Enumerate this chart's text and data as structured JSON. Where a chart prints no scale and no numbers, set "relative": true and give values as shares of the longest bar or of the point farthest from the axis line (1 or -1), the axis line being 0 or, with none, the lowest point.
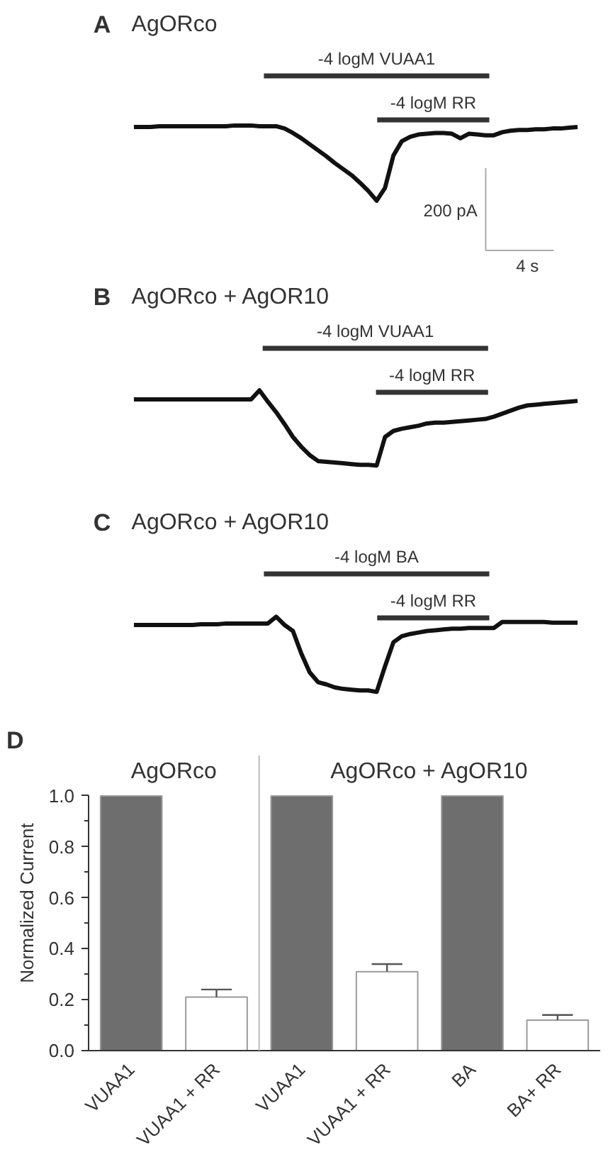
{
  "chart_data": [
    {
      "type": "line",
      "title": "A",
      "subtitle": "AgORco",
      "relative": true,
      "categories": [
        null,
        null,
        null,
        null,
        null,
        null,
        null,
        null,
        null,
        null,
        null,
        null,
        null,
        null,
        null,
        null,
        null,
        null,
        null,
        null,
        null,
        null,
        null,
        null,
        null,
        null,
        null,
        null,
        null,
        null,
        null,
        null,
        null,
        null,
        null,
        null,
        null,
        null,
        null,
        null,
        null,
        null,
        null,
        null,
        null,
        null,
        null,
        null,
        null,
        null,
        null,
        null,
        null,
        null
      ],
      "series": [
        {
          "color": "#111111",
          "values": [
            0.98,
            0.98,
            0.98,
            0.99,
            0.99,
            0.99,
            0.99,
            0.99,
            0.99,
            0.99,
            0.99,
            0.99,
            1.0,
            1.0,
            1.0,
            0.99,
            0.99,
            0.99,
            0.96,
            0.9,
            0.83,
            0.75,
            0.67,
            0.59,
            0.5,
            0.42,
            0.34,
            0.24,
            0.13,
            0.0,
            0.17,
            0.6,
            0.79,
            0.85,
            0.88,
            0.89,
            0.9,
            0.9,
            0.89,
            0.83,
            0.89,
            0.88,
            0.87,
            0.87,
            0.91,
            0.93,
            0.94,
            0.94,
            0.95,
            0.95,
            0.96,
            0.96,
            0.97,
            0.98
          ]
        }
      ],
      "annotations": [
        "-4 logM VUAA1",
        "-4 logM RR",
        "200 pA",
        "4 s"
      ]
    },
    {
      "type": "line",
      "title": "B",
      "subtitle": "AgORco + AgOR10",
      "relative": true,
      "categories": [
        null,
        null,
        null,
        null,
        null,
        null,
        null,
        null,
        null,
        null,
        null,
        null,
        null,
        null,
        null,
        null,
        null,
        null,
        null,
        null,
        null,
        null,
        null,
        null,
        null,
        null,
        null,
        null,
        null,
        null,
        null,
        null,
        null,
        null,
        null,
        null,
        null,
        null,
        null,
        null,
        null,
        null,
        null,
        null,
        null,
        null,
        null,
        null,
        null,
        null,
        null,
        null,
        null,
        null
      ],
      "series": [
        {
          "color": "#111111",
          "values": [
            0.88,
            0.88,
            0.88,
            0.88,
            0.88,
            0.88,
            0.88,
            0.88,
            0.88,
            0.88,
            0.88,
            0.88,
            0.88,
            0.88,
            0.88,
            1.0,
            0.85,
            0.71,
            0.55,
            0.38,
            0.25,
            0.14,
            0.06,
            0.05,
            0.04,
            0.03,
            0.02,
            0.01,
            0.01,
            0.0,
            0.38,
            0.46,
            0.49,
            0.51,
            0.53,
            0.56,
            0.57,
            0.57,
            0.58,
            0.59,
            0.6,
            0.61,
            0.62,
            0.65,
            0.69,
            0.73,
            0.77,
            0.8,
            0.81,
            0.82,
            0.83,
            0.84,
            0.85,
            0.86
          ]
        }
      ],
      "annotations": [
        "-4 logM VUAA1",
        "-4 logM RR"
      ]
    },
    {
      "type": "line",
      "title": "C",
      "subtitle": "AgORco + AgOR10",
      "relative": true,
      "categories": [
        null,
        null,
        null,
        null,
        null,
        null,
        null,
        null,
        null,
        null,
        null,
        null,
        null,
        null,
        null,
        null,
        null,
        null,
        null,
        null,
        null,
        null,
        null,
        null,
        null,
        null,
        null,
        null,
        null,
        null,
        null,
        null,
        null,
        null,
        null,
        null,
        null,
        null,
        null,
        null,
        null,
        null,
        null,
        null,
        null,
        null,
        null,
        null,
        null,
        null,
        null,
        null,
        null,
        null
      ],
      "series": [
        {
          "color": "#111111",
          "values": [
            0.89,
            0.89,
            0.89,
            0.89,
            0.89,
            0.89,
            0.89,
            0.89,
            0.9,
            0.9,
            0.9,
            0.91,
            0.91,
            0.91,
            0.91,
            0.91,
            0.91,
            1.0,
            0.89,
            0.81,
            0.51,
            0.26,
            0.13,
            0.1,
            0.06,
            0.04,
            0.03,
            0.02,
            0.02,
            0.0,
            0.34,
            0.66,
            0.74,
            0.77,
            0.79,
            0.81,
            0.82,
            0.83,
            0.84,
            0.84,
            0.85,
            0.85,
            0.85,
            0.85,
            0.93,
            0.93,
            0.93,
            0.93,
            0.93,
            0.93,
            0.92,
            0.92,
            0.92,
            0.92
          ]
        }
      ],
      "annotations": [
        "-4 logM BA",
        "-4 logM RR"
      ]
    },
    {
      "type": "bar",
      "title": "D",
      "categories": [
        "VUAA1",
        "VUAA1 + RR",
        "VUAA1",
        "VUAA1 + RR",
        "BA",
        "BA+ RR"
      ],
      "values": [
        1,
        0.21,
        1,
        0.31,
        1,
        0.12
      ],
      "colors": [
        "#6e6e6e",
        "#ffffff",
        "#6e6e6e",
        "#ffffff",
        "#6e6e6e",
        "#ffffff"
      ],
      "errors": [
        null,
        [
          0.21,
          0.24
        ],
        null,
        [
          0.31,
          0.34
        ],
        null,
        [
          0.12,
          0.14
        ]
      ],
      "ylabel": "Normalized Current",
      "ylim": [
        0,
        1
      ],
      "yticks": [
        {
          "value": 0,
          "label": "0.0"
        },
        {
          "value": 0.1,
          "label": null
        },
        {
          "value": 0.2,
          "label": "0.2"
        },
        {
          "value": 0.3,
          "label": null
        },
        {
          "value": 0.4,
          "label": "0.4"
        },
        {
          "value": 0.5,
          "label": null
        },
        {
          "value": 0.6,
          "label": "0.6"
        },
        {
          "value": 0.7,
          "label": null
        },
        {
          "value": 0.8,
          "label": "0.8"
        },
        {
          "value": 0.9,
          "label": null
        },
        {
          "value": 1,
          "label": "1.0"
        }
      ],
      "annotations": [
        "AgORco",
        "AgORco + AgOR10"
      ]
    }
  ]
}
